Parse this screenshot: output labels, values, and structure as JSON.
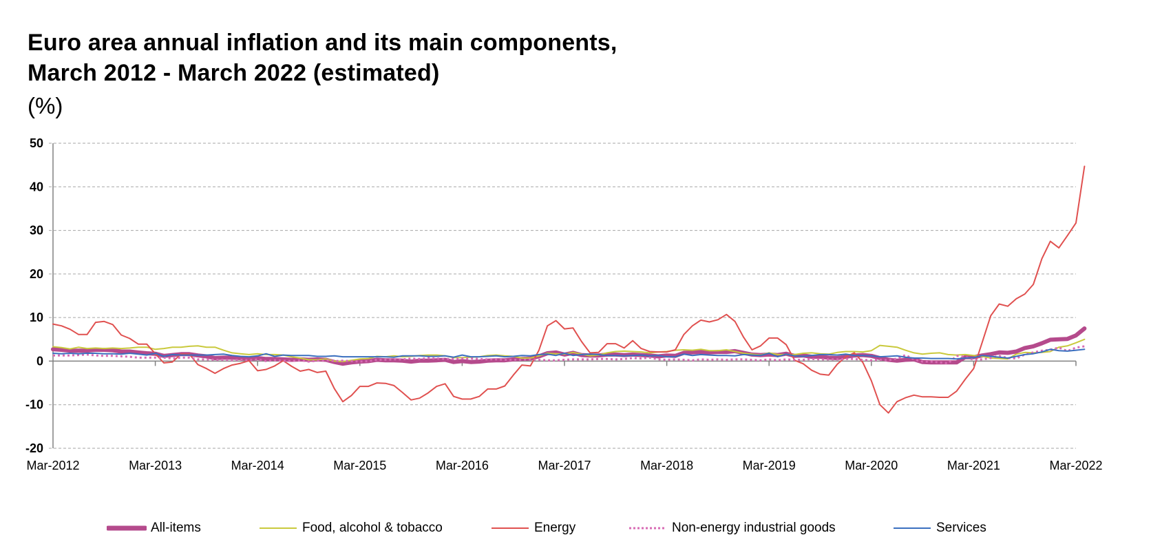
{
  "title_line1": "Euro area annual inflation and its main components,",
  "title_line2": "March 2012 - March 2022 (estimated)",
  "unit_label": "(%)",
  "chart_data": {
    "type": "line",
    "title": "Euro area annual inflation and its main components, March 2012 - March 2022 (estimated)",
    "xlabel": "",
    "ylabel": "(%)",
    "ylim": [
      -20,
      50
    ],
    "yticks": [
      50,
      40,
      30,
      20,
      10,
      0,
      -10,
      -20
    ],
    "grid": true,
    "legend_position": "bottom",
    "x_start": "Mar-2012",
    "x_end": "Mar-2022",
    "frequency": "monthly",
    "xtick_labels": [
      "Mar-2012",
      "Mar-2013",
      "Mar-2014",
      "Mar-2015",
      "Mar-2016",
      "Mar-2017",
      "Mar-2018",
      "Mar-2019",
      "Mar-2020",
      "Mar-2021",
      "Mar-2022"
    ],
    "series": [
      {
        "name": "All-items",
        "color": "#B54A8C",
        "style": "thick",
        "values": [
          2.7,
          2.6,
          2.4,
          2.4,
          2.4,
          2.6,
          2.6,
          2.5,
          2.2,
          2.2,
          2.0,
          1.8,
          1.7,
          1.2,
          1.4,
          1.6,
          1.6,
          1.3,
          1.1,
          0.7,
          0.8,
          0.8,
          0.7,
          0.5,
          0.7,
          0.5,
          0.5,
          0.4,
          0.3,
          0.4,
          0.3,
          0.4,
          0.3,
          -0.2,
          -0.6,
          -0.3,
          -0.1,
          0.0,
          0.3,
          0.2,
          0.2,
          0.1,
          -0.1,
          0.1,
          0.1,
          0.2,
          0.3,
          -0.2,
          0.0,
          -0.2,
          -0.1,
          0.1,
          0.2,
          0.2,
          0.4,
          0.5,
          0.6,
          1.1,
          1.8,
          2.0,
          1.5,
          1.9,
          1.4,
          1.3,
          1.3,
          1.5,
          1.5,
          1.4,
          1.5,
          1.4,
          1.3,
          1.1,
          1.3,
          1.2,
          1.9,
          2.0,
          2.1,
          2.0,
          2.1,
          2.1,
          2.3,
          1.9,
          1.5,
          1.4,
          1.5,
          1.4,
          1.7,
          1.2,
          1.3,
          1.0,
          1.0,
          0.8,
          0.7,
          1.0,
          1.3,
          1.4,
          1.2,
          0.7,
          0.3,
          0.1,
          0.3,
          0.4,
          -0.2,
          -0.3,
          -0.3,
          -0.3,
          -0.3,
          0.9,
          0.9,
          1.3,
          1.6,
          2.0,
          1.9,
          2.2,
          3.0,
          3.4,
          4.1,
          4.9,
          5.0,
          5.1,
          5.9,
          7.5
        ]
      },
      {
        "name": "Food, alcohol & tobacco",
        "color": "#C9C93C",
        "style": "solid",
        "values": [
          3.3,
          3.1,
          2.8,
          3.2,
          2.9,
          3.0,
          2.9,
          3.0,
          2.9,
          3.0,
          3.2,
          3.2,
          2.7,
          2.9,
          3.2,
          3.2,
          3.4,
          3.5,
          3.2,
          3.2,
          2.5,
          1.9,
          1.7,
          1.5,
          1.7,
          1.5,
          1.5,
          1.4,
          1.0,
          0.7,
          0.3,
          0.3,
          0.5,
          0.0,
          -0.1,
          0.2,
          0.5,
          0.6,
          1.1,
          1.0,
          1.2,
          1.0,
          1.1,
          1.3,
          1.4,
          1.4,
          1.2,
          0.8,
          0.8,
          0.9,
          1.0,
          1.3,
          1.4,
          1.2,
          1.1,
          0.7,
          0.7,
          1.2,
          1.8,
          1.7,
          1.6,
          2.0,
          1.6,
          1.2,
          1.4,
          1.9,
          2.2,
          2.3,
          2.2,
          2.1,
          1.9,
          2.1,
          2.2,
          2.5,
          2.6,
          2.5,
          2.7,
          2.4,
          2.4,
          2.6,
          2.2,
          1.8,
          1.6,
          1.4,
          1.9,
          1.5,
          1.5,
          1.5,
          1.8,
          1.9,
          1.7,
          1.6,
          2.0,
          2.2,
          2.2,
          2.1,
          2.4,
          3.6,
          3.4,
          3.2,
          2.5,
          1.9,
          1.6,
          1.8,
          1.9,
          1.5,
          1.4,
          1.5,
          1.3,
          1.1,
          0.7,
          0.6,
          0.5,
          1.6,
          2.0,
          1.9,
          2.0,
          2.2,
          3.2,
          3.5,
          4.2,
          5.0
        ]
      },
      {
        "name": "Energy",
        "color": "#E0504F",
        "style": "solid",
        "values": [
          8.5,
          8.1,
          7.3,
          6.1,
          6.1,
          8.9,
          9.1,
          8.4,
          6.0,
          5.2,
          3.9,
          3.9,
          1.7,
          -0.4,
          -0.2,
          1.6,
          1.6,
          -0.8,
          -1.7,
          -2.8,
          -1.7,
          -0.9,
          -0.5,
          0.1,
          -2.2,
          -1.9,
          -1.1,
          0.1,
          -1.2,
          -2.3,
          -1.9,
          -2.6,
          -2.3,
          -6.3,
          -9.3,
          -7.9,
          -5.8,
          -5.8,
          -5.0,
          -5.1,
          -5.6,
          -7.2,
          -8.9,
          -8.5,
          -7.3,
          -5.8,
          -5.2,
          -8.1,
          -8.7,
          -8.7,
          -8.1,
          -6.4,
          -6.4,
          -5.7,
          -3.2,
          -0.9,
          -1.1,
          2.5,
          8.1,
          9.3,
          7.4,
          7.6,
          4.5,
          1.9,
          2.0,
          4.0,
          4.0,
          3.0,
          4.7,
          2.9,
          2.2,
          2.1,
          2.1,
          2.6,
          6.1,
          8.1,
          9.4,
          9.0,
          9.5,
          10.7,
          9.1,
          5.5,
          2.6,
          3.5,
          5.3,
          5.3,
          3.8,
          0.2,
          -0.6,
          -2.1,
          -3.0,
          -3.2,
          -0.7,
          1.0,
          1.9,
          -0.3,
          -4.5,
          -10.0,
          -11.9,
          -9.3,
          -8.4,
          -7.8,
          -8.2,
          -8.2,
          -8.3,
          -8.3,
          -6.9,
          -4.2,
          -1.7,
          4.3,
          10.4,
          13.1,
          12.6,
          14.3,
          15.4,
          17.6,
          23.5,
          27.5,
          26.0,
          28.8,
          31.7,
          44.7
        ]
      },
      {
        "name": "Non-energy industrial goods",
        "color": "#D86BB4",
        "style": "dotted",
        "values": [
          1.3,
          1.3,
          1.3,
          1.4,
          1.5,
          1.3,
          1.2,
          1.2,
          1.1,
          1.0,
          0.8,
          0.8,
          0.8,
          0.8,
          0.6,
          0.8,
          0.8,
          0.4,
          0.4,
          0.3,
          0.3,
          0.2,
          0.3,
          0.2,
          0.4,
          0.0,
          0.2,
          0.1,
          0.0,
          0.2,
          -0.1,
          0.1,
          0.2,
          0.0,
          0.1,
          0.0,
          -0.1,
          0.0,
          0.3,
          0.3,
          0.4,
          0.4,
          0.6,
          0.5,
          0.7,
          0.6,
          0.5,
          0.5,
          0.6,
          0.6,
          0.5,
          0.4,
          0.4,
          0.3,
          0.3,
          0.3,
          0.4,
          0.3,
          0.2,
          0.2,
          0.3,
          0.4,
          0.4,
          0.4,
          0.5,
          0.5,
          0.4,
          0.5,
          0.7,
          0.6,
          0.8,
          0.4,
          0.3,
          0.4,
          0.3,
          0.2,
          0.4,
          0.3,
          0.4,
          0.3,
          0.4,
          0.4,
          0.3,
          0.2,
          0.4,
          0.2,
          0.4,
          0.3,
          0.3,
          0.5,
          0.4,
          0.4,
          0.4,
          0.5,
          0.5,
          0.3,
          0.2,
          0.3,
          0.2,
          0.6,
          1.4,
          0.4,
          -0.1,
          -0.1,
          -0.3,
          -0.5,
          1.2,
          1.0,
          0.3,
          0.4,
          0.7,
          1.2,
          0.7,
          0.6,
          1.5,
          2.0,
          2.4,
          2.6,
          3.1,
          2.3,
          3.1,
          3.4
        ]
      },
      {
        "name": "Services",
        "color": "#3A6FBF",
        "style": "solid",
        "values": [
          1.8,
          1.7,
          1.8,
          1.7,
          1.8,
          1.8,
          1.7,
          1.7,
          1.6,
          1.8,
          1.6,
          1.4,
          1.8,
          1.1,
          1.5,
          1.4,
          1.4,
          1.4,
          1.4,
          1.5,
          1.6,
          1.3,
          1.1,
          1.0,
          1.2,
          1.7,
          1.1,
          1.4,
          1.3,
          1.3,
          1.3,
          1.1,
          1.1,
          1.2,
          1.0,
          1.0,
          1.0,
          1.0,
          1.0,
          1.0,
          0.9,
          1.2,
          1.2,
          1.2,
          1.1,
          1.1,
          1.2,
          0.9,
          1.4,
          1.0,
          1.0,
          1.1,
          1.2,
          1.0,
          1.1,
          1.3,
          1.2,
          1.5,
          1.6,
          1.3,
          1.8,
          1.3,
          1.5,
          1.6,
          1.5,
          1.3,
          1.3,
          1.2,
          1.3,
          1.4,
          1.2,
          1.3,
          1.0,
          1.0,
          1.6,
          1.3,
          1.5,
          1.4,
          1.3,
          1.3,
          1.2,
          1.5,
          1.4,
          1.3,
          1.8,
          1.0,
          1.6,
          1.2,
          1.1,
          1.3,
          1.5,
          1.5,
          1.4,
          1.6,
          1.3,
          1.3,
          1.2,
          1.0,
          1.1,
          1.2,
          0.9,
          0.7,
          0.7,
          0.6,
          0.6,
          0.6,
          0.5,
          0.7,
          0.8,
          1.3,
          1.1,
          0.9,
          0.7,
          1.1,
          1.5,
          1.7,
          2.1,
          2.7,
          2.4,
          2.3,
          2.5,
          2.7
        ]
      }
    ]
  },
  "legend": [
    {
      "label": "All-items"
    },
    {
      "label": "Food, alcohol & tobacco"
    },
    {
      "label": "Energy"
    },
    {
      "label": "Non-energy industrial goods"
    },
    {
      "label": "Services"
    }
  ]
}
